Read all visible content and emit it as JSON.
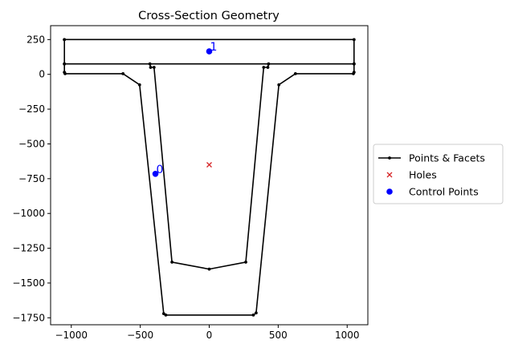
{
  "chart_data": {
    "type": "line",
    "title": "Cross-Section Geometry",
    "xlabel": "",
    "ylabel": "",
    "xlim": [
      -1150,
      1150
    ],
    "ylim": [
      -1800,
      350
    ],
    "xticks": [
      -1000,
      -500,
      0,
      500,
      1000
    ],
    "yticks": [
      250,
      0,
      -250,
      -500,
      -750,
      -1000,
      -1250,
      -1500,
      -1750
    ],
    "grid": false,
    "legend_position": "center-right",
    "legend": [
      {
        "label": "Points & Facets",
        "marker": "line-dot",
        "color": "#000000"
      },
      {
        "label": "Holes",
        "marker": "x",
        "color": "#d62728"
      },
      {
        "label": "Control Points",
        "marker": "circle",
        "color": "#0000ff"
      }
    ],
    "facets": [
      [
        [
          -1050,
          250
        ],
        [
          1050,
          250
        ],
        [
          1050,
          75
        ],
        [
          -1050,
          75
        ],
        [
          -1050,
          250
        ]
      ],
      [
        [
          -1050,
          75
        ],
        [
          -1050,
          15
        ],
        [
          -1045,
          5
        ],
        [
          -625,
          5
        ],
        [
          -505,
          -75
        ],
        [
          -330,
          -1720
        ],
        [
          -315,
          -1730
        ],
        [
          320,
          -1730
        ],
        [
          340,
          -1715
        ],
        [
          505,
          -75
        ],
        [
          625,
          5
        ],
        [
          1045,
          5
        ],
        [
          1050,
          15
        ],
        [
          1050,
          75
        ]
      ],
      [
        [
          -430,
          75
        ],
        [
          -425,
          50
        ],
        [
          -400,
          50
        ],
        [
          -270,
          -1350
        ],
        [
          0,
          -1400
        ],
        [
          265,
          -1350
        ],
        [
          395,
          50
        ],
        [
          425,
          50
        ],
        [
          430,
          75
        ]
      ]
    ],
    "holes": [
      [
        0,
        -650
      ]
    ],
    "control_points": [
      {
        "label": "0",
        "x": -390,
        "y": -715
      },
      {
        "label": "1",
        "x": 0,
        "y": 165
      }
    ]
  }
}
